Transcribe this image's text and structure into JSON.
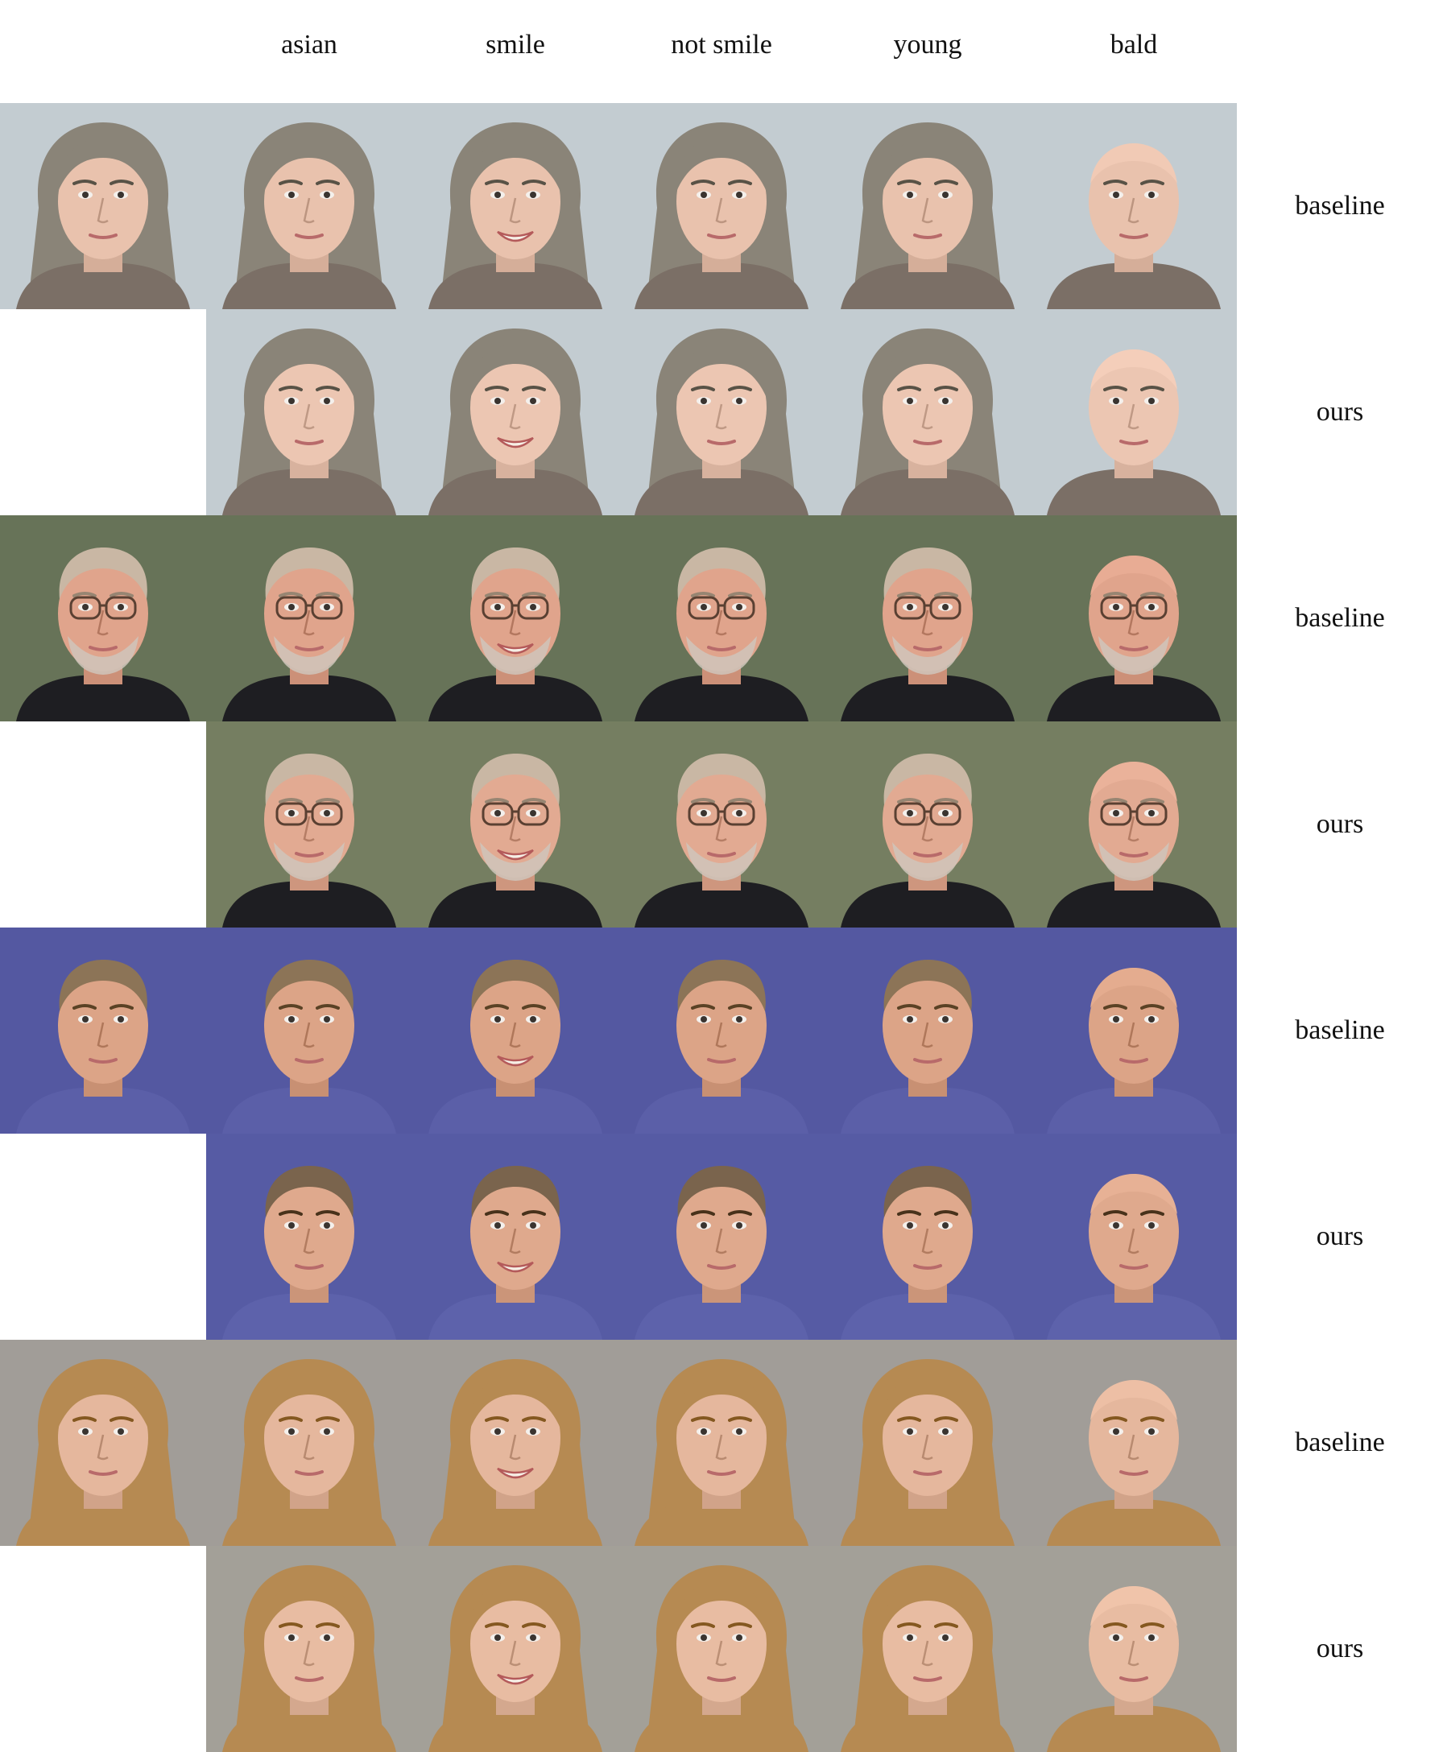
{
  "columns": [
    "asian",
    "smile",
    "not smile",
    "young",
    "bald"
  ],
  "rows": [
    {
      "label": "baseline",
      "has_input": true,
      "subject": "older-woman-gray-hair",
      "bg": "#c9d3d8",
      "hair": "#8a8478",
      "skin": "#e9c2ad",
      "shirt": "#7b6f66"
    },
    {
      "label": "ours",
      "has_input": false,
      "subject": "older-woman-gray-hair",
      "bg": "#c9d3d8",
      "hair": "#8a8478",
      "skin": "#ecc6b2",
      "shirt": "#7b6f66"
    },
    {
      "label": "baseline",
      "has_input": true,
      "subject": "older-man-glasses-beard",
      "bg": "#6e7a5e",
      "hair": "#c9b7a4",
      "skin": "#e0a48c",
      "shirt": "#1e1e22"
    },
    {
      "label": "ours",
      "has_input": false,
      "subject": "older-man-glasses-beard",
      "bg": "#7b8568",
      "hair": "#c9b7a4",
      "skin": "#e2aa92",
      "shirt": "#1e1e22"
    },
    {
      "label": "baseline",
      "has_input": true,
      "subject": "young-man-blond",
      "bg": "#5b5fa8",
      "hair": "#8c7457",
      "skin": "#dca487",
      "shirt": "#5b5fa8"
    },
    {
      "label": "ours",
      "has_input": false,
      "subject": "young-man-blond",
      "bg": "#5d62ab",
      "hair": "#7a644d",
      "skin": "#dfa98d",
      "shirt": "#5d62ab"
    },
    {
      "label": "baseline",
      "has_input": true,
      "subject": "blonde-woman",
      "bg": "#a8a49e",
      "hair": "#b68a52",
      "skin": "#e5b79d",
      "shirt": "#b68a52"
    },
    {
      "label": "ours",
      "has_input": false,
      "subject": "blonde-woman",
      "bg": "#aaa69f",
      "hair": "#b68a52",
      "skin": "#e8bca2",
      "shirt": "#b68a52"
    }
  ],
  "variants": {
    "smile_col": 2,
    "bald_col": 5
  }
}
